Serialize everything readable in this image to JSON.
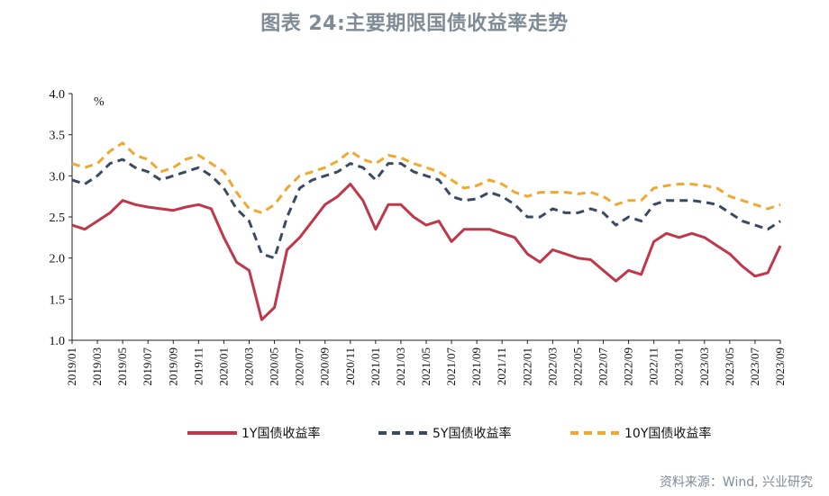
{
  "title": "图表 24:主要期限国债收益率走势",
  "source": "资料来源：Wind, 兴业研究",
  "chart_data": {
    "type": "line",
    "unit_label": "%",
    "ylim": [
      1.0,
      4.0
    ],
    "yticks": [
      1.0,
      1.5,
      2.0,
      2.5,
      3.0,
      3.5,
      4.0
    ],
    "ytick_labels": [
      "1.0",
      "1.5",
      "2.0",
      "2.5",
      "3.0",
      "3.5",
      "4.0"
    ],
    "xlim": [
      "2019-01",
      "2023-09"
    ],
    "xtick_labels": [
      "2019/01",
      "2019/03",
      "2019/05",
      "2019/07",
      "2019/09",
      "2019/11",
      "2020/01",
      "2020/03",
      "2020/05",
      "2020/07",
      "2020/09",
      "2020/11",
      "2021/01",
      "2021/03",
      "2021/05",
      "2021/07",
      "2021/09",
      "2021/11",
      "2022/01",
      "2022/03",
      "2022/05",
      "2022/07",
      "2022/09",
      "2022/11",
      "2023/01",
      "2023/03",
      "2023/05",
      "2023/07",
      "2023/09"
    ],
    "legend_position": "bottom",
    "grid": false,
    "series": [
      {
        "name": "1Y国债收益率",
        "color": "#c0374a",
        "style": "solid",
        "x": [
          "2019-01",
          "2019-02",
          "2019-03",
          "2019-04",
          "2019-05",
          "2019-06",
          "2019-07",
          "2019-08",
          "2019-09",
          "2019-10",
          "2019-11",
          "2019-12",
          "2020-01",
          "2020-02",
          "2020-03",
          "2020-04",
          "2020-05",
          "2020-06",
          "2020-07",
          "2020-08",
          "2020-09",
          "2020-10",
          "2020-11",
          "2020-12",
          "2021-01",
          "2021-02",
          "2021-03",
          "2021-04",
          "2021-05",
          "2021-06",
          "2021-07",
          "2021-08",
          "2021-09",
          "2021-10",
          "2021-11",
          "2021-12",
          "2022-01",
          "2022-02",
          "2022-03",
          "2022-04",
          "2022-05",
          "2022-06",
          "2022-07",
          "2022-08",
          "2022-09",
          "2022-10",
          "2022-11",
          "2022-12",
          "2023-01",
          "2023-02",
          "2023-03",
          "2023-04",
          "2023-05",
          "2023-06",
          "2023-07",
          "2023-08",
          "2023-09"
        ],
        "y": [
          2.4,
          2.35,
          2.45,
          2.55,
          2.7,
          2.65,
          2.62,
          2.6,
          2.58,
          2.62,
          2.65,
          2.6,
          2.25,
          1.95,
          1.85,
          1.25,
          1.4,
          2.1,
          2.25,
          2.45,
          2.65,
          2.75,
          2.9,
          2.7,
          2.35,
          2.65,
          2.65,
          2.5,
          2.4,
          2.45,
          2.2,
          2.35,
          2.35,
          2.35,
          2.3,
          2.25,
          2.05,
          1.95,
          2.1,
          2.05,
          2.0,
          1.98,
          1.85,
          1.72,
          1.85,
          1.8,
          2.2,
          2.3,
          2.25,
          2.3,
          2.25,
          2.15,
          2.05,
          1.9,
          1.78,
          1.82,
          2.15
        ]
      },
      {
        "name": "5Y国债收益率",
        "color": "#3b4a63",
        "style": "dashed",
        "x": [
          "2019-01",
          "2019-02",
          "2019-03",
          "2019-04",
          "2019-05",
          "2019-06",
          "2019-07",
          "2019-08",
          "2019-09",
          "2019-10",
          "2019-11",
          "2019-12",
          "2020-01",
          "2020-02",
          "2020-03",
          "2020-04",
          "2020-05",
          "2020-06",
          "2020-07",
          "2020-08",
          "2020-09",
          "2020-10",
          "2020-11",
          "2020-12",
          "2021-01",
          "2021-02",
          "2021-03",
          "2021-04",
          "2021-05",
          "2021-06",
          "2021-07",
          "2021-08",
          "2021-09",
          "2021-10",
          "2021-11",
          "2021-12",
          "2022-01",
          "2022-02",
          "2022-03",
          "2022-04",
          "2022-05",
          "2022-06",
          "2022-07",
          "2022-08",
          "2022-09",
          "2022-10",
          "2022-11",
          "2022-12",
          "2023-01",
          "2023-02",
          "2023-03",
          "2023-04",
          "2023-05",
          "2023-06",
          "2023-07",
          "2023-08",
          "2023-09"
        ],
        "y": [
          2.95,
          2.9,
          3.0,
          3.15,
          3.2,
          3.1,
          3.05,
          2.95,
          3.0,
          3.05,
          3.1,
          3.0,
          2.85,
          2.6,
          2.45,
          2.05,
          2.0,
          2.5,
          2.85,
          2.95,
          3.0,
          3.05,
          3.15,
          3.1,
          2.95,
          3.15,
          3.15,
          3.05,
          3.0,
          2.95,
          2.75,
          2.7,
          2.72,
          2.8,
          2.75,
          2.65,
          2.5,
          2.5,
          2.6,
          2.55,
          2.55,
          2.6,
          2.55,
          2.4,
          2.5,
          2.45,
          2.65,
          2.7,
          2.7,
          2.7,
          2.68,
          2.65,
          2.55,
          2.45,
          2.4,
          2.35,
          2.45
        ]
      },
      {
        "name": "10Y国债收益率",
        "color": "#f0a830",
        "style": "dashed",
        "x": [
          "2019-01",
          "2019-02",
          "2019-03",
          "2019-04",
          "2019-05",
          "2019-06",
          "2019-07",
          "2019-08",
          "2019-09",
          "2019-10",
          "2019-11",
          "2019-12",
          "2020-01",
          "2020-02",
          "2020-03",
          "2020-04",
          "2020-05",
          "2020-06",
          "2020-07",
          "2020-08",
          "2020-09",
          "2020-10",
          "2020-11",
          "2020-12",
          "2021-01",
          "2021-02",
          "2021-03",
          "2021-04",
          "2021-05",
          "2021-06",
          "2021-07",
          "2021-08",
          "2021-09",
          "2021-10",
          "2021-11",
          "2021-12",
          "2022-01",
          "2022-02",
          "2022-03",
          "2022-04",
          "2022-05",
          "2022-06",
          "2022-07",
          "2022-08",
          "2022-09",
          "2022-10",
          "2022-11",
          "2022-12",
          "2023-01",
          "2023-02",
          "2023-03",
          "2023-04",
          "2023-05",
          "2023-06",
          "2023-07",
          "2023-08",
          "2023-09"
        ],
        "y": [
          3.15,
          3.1,
          3.15,
          3.3,
          3.4,
          3.25,
          3.2,
          3.05,
          3.1,
          3.2,
          3.25,
          3.15,
          3.05,
          2.8,
          2.6,
          2.55,
          2.65,
          2.85,
          3.0,
          3.05,
          3.1,
          3.18,
          3.3,
          3.2,
          3.15,
          3.25,
          3.22,
          3.15,
          3.1,
          3.05,
          2.95,
          2.85,
          2.88,
          2.95,
          2.9,
          2.8,
          2.75,
          2.8,
          2.8,
          2.8,
          2.78,
          2.8,
          2.75,
          2.65,
          2.7,
          2.7,
          2.85,
          2.88,
          2.9,
          2.9,
          2.88,
          2.85,
          2.75,
          2.7,
          2.65,
          2.6,
          2.65
        ]
      }
    ]
  }
}
